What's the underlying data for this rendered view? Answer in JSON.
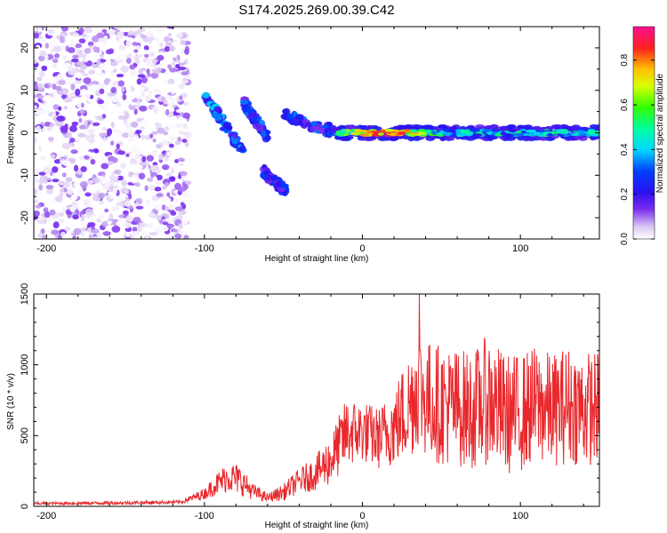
{
  "figure_title": "S174.2025.269.00.39.C42",
  "colors": {
    "series_line": "#e8282c",
    "axis": "#000000",
    "colormap": [
      "#ffffff",
      "#d9c4f2",
      "#7b2cf0",
      "#3a10e0",
      "#0000ff",
      "#00d8ff",
      "#00ff66",
      "#aaff00",
      "#ffd000",
      "#ff2020",
      "#ff1090"
    ]
  },
  "chart_data": [
    {
      "type": "heatmap",
      "title": "",
      "xlabel": "Height of straight line (km)",
      "ylabel": "Frequency (Hz)",
      "xlim": [
        -208,
        150
      ],
      "ylim": [
        -25,
        25
      ],
      "x_ticks": [
        -200,
        -100,
        0,
        100
      ],
      "y_ticks": [
        -20,
        -10,
        0,
        10,
        20
      ],
      "colorbar": {
        "label": "Normalized spectral amplitude",
        "range": [
          0,
          0.95
        ],
        "ticks": [
          0.0,
          0.2,
          0.4,
          0.6,
          0.8
        ]
      },
      "regions": [
        {
          "name": "noise",
          "x_range": [
            -208,
            -110
          ],
          "y_range": [
            -25,
            25
          ],
          "amplitude_range": [
            0.0,
            0.15
          ]
        },
        {
          "name": "descending-branch-upper",
          "x_start": -100,
          "x_end": -75,
          "y_start": 9,
          "y_end": -5,
          "amplitude": 0.3
        },
        {
          "name": "descending-branch-middle",
          "x_start": -75,
          "x_end": -60,
          "y_start": 7,
          "y_end": -1,
          "amplitude": 0.25
        },
        {
          "name": "descending-branch-lower",
          "x_start": -63,
          "x_end": -48,
          "y_start": -9,
          "y_end": -14,
          "amplitude": 0.22
        },
        {
          "name": "converging-fan",
          "x_start": -50,
          "x_end": -15,
          "y_start": 4,
          "y_end": 0,
          "amplitude": 0.25
        },
        {
          "name": "steady-line",
          "x_start": -15,
          "x_end": 150,
          "y": 0,
          "amplitude_range": [
            0.2,
            0.95
          ],
          "peak_x": 15
        }
      ]
    },
    {
      "type": "line",
      "title": "",
      "xlabel": "Height of straight line (km)",
      "ylabel": "SNR (10 * v/v)",
      "xlim": [
        -208,
        150
      ],
      "ylim": [
        0,
        1500
      ],
      "x_ticks": [
        -200,
        -100,
        0,
        100
      ],
      "y_ticks": [
        0,
        500,
        1000,
        1500
      ],
      "envelope": {
        "x": [
          -208,
          -150,
          -115,
          -100,
          -92,
          -85,
          -78,
          -70,
          -60,
          -50,
          -40,
          -30,
          -20,
          -10,
          0,
          10,
          20,
          30,
          35,
          40,
          50,
          60,
          70,
          80,
          90,
          100,
          110,
          120,
          130,
          140,
          150
        ],
        "mid": [
          20,
          25,
          30,
          90,
          160,
          210,
          190,
          110,
          60,
          100,
          180,
          230,
          330,
          520,
          530,
          480,
          560,
          720,
          850,
          760,
          720,
          700,
          680,
          760,
          650,
          660,
          720,
          680,
          720,
          690,
          700
        ],
        "amp": [
          10,
          12,
          12,
          40,
          80,
          110,
          110,
          60,
          30,
          60,
          90,
          120,
          180,
          250,
          220,
          220,
          280,
          400,
          430,
          420,
          430,
          420,
          420,
          460,
          430,
          420,
          420,
          400,
          420,
          410,
          400
        ]
      },
      "peak": {
        "x": 36,
        "y": 1500
      }
    }
  ]
}
